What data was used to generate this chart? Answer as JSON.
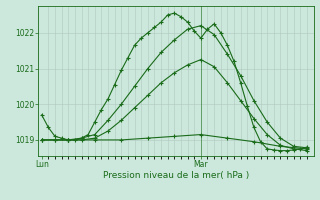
{
  "background_color": "#cce8dc",
  "grid_color": "#b0c8c0",
  "line_color": "#1a6b1a",
  "title": "Pression niveau de la mer( hPa )",
  "xlabel_lun": "Lun",
  "xlabel_mar": "Mar",
  "ylim": [
    1018.55,
    1022.75
  ],
  "yticks": [
    1019,
    1020,
    1021,
    1022
  ],
  "xlim": [
    -0.5,
    41
  ],
  "lun_x": 0,
  "mar_x": 24,
  "series": [
    {
      "x": [
        0,
        1,
        2,
        3,
        4,
        5,
        6,
        7,
        8,
        9,
        10,
        11,
        12,
        13,
        14,
        15,
        16,
        17,
        18,
        19,
        20,
        21,
        22,
        23,
        24,
        25,
        26,
        27,
        28,
        29,
        30,
        31,
        32,
        33,
        34,
        35,
        36,
        37,
        38,
        39,
        40
      ],
      "y": [
        1019.7,
        1019.35,
        1019.1,
        1019.05,
        1019.0,
        1019.0,
        1019.05,
        1019.15,
        1019.5,
        1019.85,
        1020.15,
        1020.55,
        1020.95,
        1021.3,
        1021.65,
        1021.85,
        1022.0,
        1022.15,
        1022.3,
        1022.5,
        1022.55,
        1022.45,
        1022.3,
        1022.05,
        1021.85,
        1022.1,
        1022.25,
        1022.0,
        1021.65,
        1021.2,
        1020.6,
        1019.95,
        1019.35,
        1018.95,
        1018.75,
        1018.72,
        1018.7,
        1018.7,
        1018.72,
        1018.75,
        1018.8
      ]
    },
    {
      "x": [
        0,
        2,
        4,
        6,
        8,
        10,
        12,
        14,
        16,
        18,
        20,
        22,
        24,
        26,
        28,
        30,
        32,
        34,
        36,
        38,
        40
      ],
      "y": [
        1019.0,
        1019.0,
        1019.0,
        1019.05,
        1019.15,
        1019.55,
        1020.0,
        1020.5,
        1021.0,
        1021.45,
        1021.8,
        1022.1,
        1022.2,
        1021.95,
        1021.4,
        1020.8,
        1020.1,
        1019.5,
        1019.05,
        1018.82,
        1018.78
      ]
    },
    {
      "x": [
        0,
        2,
        4,
        6,
        8,
        10,
        12,
        14,
        16,
        18,
        20,
        22,
        24,
        26,
        28,
        30,
        32,
        34,
        36,
        38,
        40
      ],
      "y": [
        1019.0,
        1019.0,
        1019.0,
        1019.0,
        1019.05,
        1019.25,
        1019.55,
        1019.9,
        1020.25,
        1020.6,
        1020.88,
        1021.1,
        1021.25,
        1021.05,
        1020.6,
        1020.1,
        1019.6,
        1019.15,
        1018.85,
        1018.75,
        1018.7
      ]
    },
    {
      "x": [
        0,
        4,
        8,
        12,
        16,
        20,
        24,
        28,
        32,
        36,
        40
      ],
      "y": [
        1019.0,
        1019.0,
        1019.0,
        1019.0,
        1019.05,
        1019.1,
        1019.15,
        1019.05,
        1018.95,
        1018.82,
        1018.75
      ]
    }
  ],
  "minor_grid_x_count": 24,
  "figsize": [
    3.2,
    2.0
  ],
  "dpi": 100
}
